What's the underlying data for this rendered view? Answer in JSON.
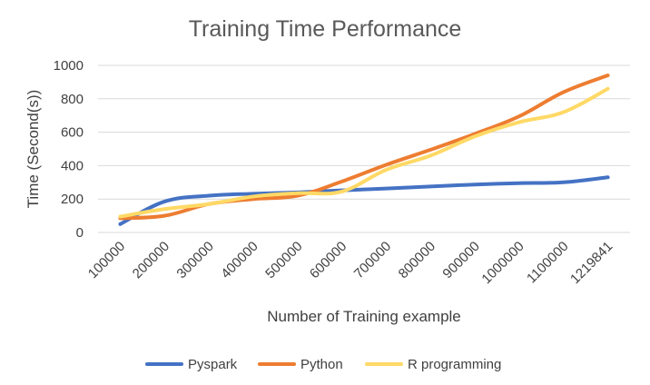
{
  "chart_data": {
    "type": "line",
    "title": "Training Time Performance",
    "xlabel": "Number of Training example",
    "ylabel": "Time (Second(s))",
    "categories": [
      "100000",
      "200000",
      "300000",
      "400000",
      "500000",
      "600000",
      "700000",
      "800000",
      "900000",
      "1000000",
      "1100000",
      "1219841"
    ],
    "ylim": [
      0,
      1000
    ],
    "yticks": [
      0,
      200,
      400,
      600,
      800,
      1000
    ],
    "grid": true,
    "legend_position": "bottom",
    "series": [
      {
        "name": "Pyspark",
        "color": "#4472c4",
        "values": [
          50,
          185,
          220,
          232,
          240,
          252,
          263,
          275,
          287,
          295,
          300,
          330
        ]
      },
      {
        "name": "Python",
        "color": "#ed7d31",
        "values": [
          85,
          100,
          170,
          200,
          220,
          305,
          405,
          495,
          590,
          695,
          840,
          940
        ]
      },
      {
        "name": "R programming",
        "color": "#ffd966",
        "values": [
          95,
          140,
          170,
          215,
          235,
          245,
          375,
          460,
          575,
          660,
          720,
          860
        ]
      }
    ]
  }
}
